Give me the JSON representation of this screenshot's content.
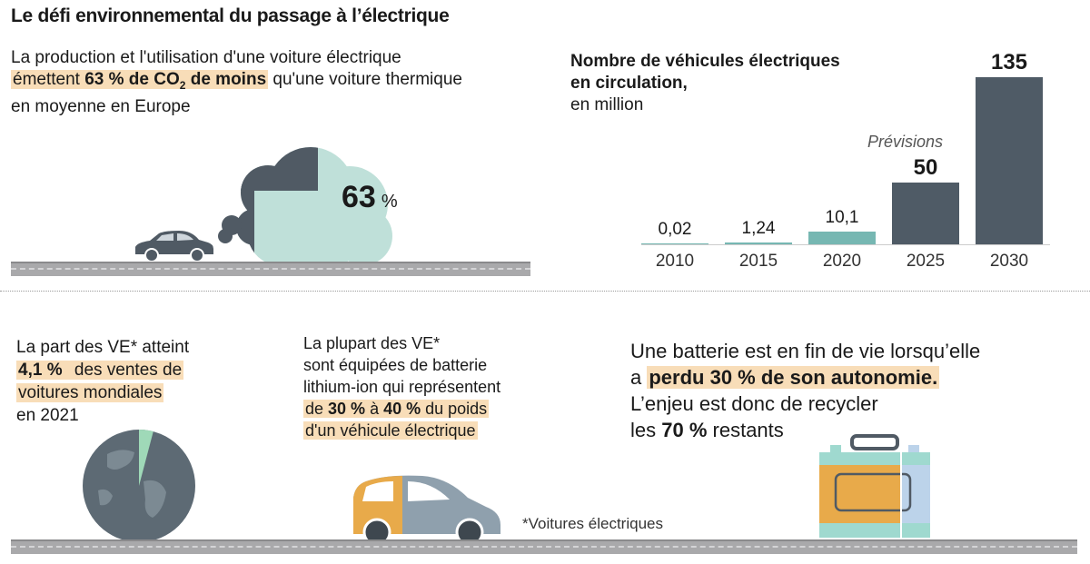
{
  "title": "Le défi environnemental du passage à l’électrique",
  "co2": {
    "line1": "La production et l'utilisation d'une voiture électrique",
    "line2_pre": "émettent",
    "line2_hl_a": "63 % de CO",
    "line2_sub": "2",
    "line2_hl_b": " de moins",
    "line2_post": "qu'une voiture thermique",
    "line3": "en moyenne en Europe",
    "value": "63",
    "unit": "%",
    "share_dark_fraction": 0.37,
    "colors": {
      "dark": "#505a64",
      "light": "#bfe0d9"
    }
  },
  "chart_data": {
    "type": "bar",
    "title": "Nombre de véhicules électriques",
    "title_line2": "en circulation,",
    "subtitle": "en million",
    "annotation": "Prévisions",
    "categories": [
      "2010",
      "2015",
      "2020",
      "2025",
      "2030"
    ],
    "values": [
      0.02,
      1.24,
      10.1,
      50,
      135
    ],
    "value_labels": [
      "0,02",
      "1,24",
      "10,1",
      "50",
      "135"
    ],
    "forecast": [
      false,
      false,
      false,
      true,
      true
    ],
    "colors": {
      "historic": "#76b7b2",
      "forecast": "#4f5b66"
    },
    "ylim": [
      0,
      135
    ]
  },
  "share": {
    "l1": "La part des VE* atteint",
    "l2_hl": "4,1 %",
    "l2_post": "des ventes de",
    "l3_hl": "voitures mondiales",
    "l4": "en 2021",
    "value_percent": 4.1
  },
  "battery_type": {
    "l1": "La plupart des VE*",
    "l2": "sont équipées de batterie",
    "l3": "lithium-ion qui représentent",
    "l4_pre": "de ",
    "l4_b1": "30 %",
    "l4_mid": " à ",
    "l4_b2": "40 %",
    "l4_post": " du poids",
    "l5": "d'un véhicule électrique"
  },
  "footnote": "*Voitures électriques",
  "recycle": {
    "l1": "Une batterie est en fin de vie lorsqu’elle",
    "l2_pre": "a ",
    "l2_hl": "perdu 30 % de son autonomie.",
    "l3": "L’enjeu est donc de recycler",
    "l4_pre": "les ",
    "l4_b": "70 %",
    "l4_post": " restants"
  }
}
